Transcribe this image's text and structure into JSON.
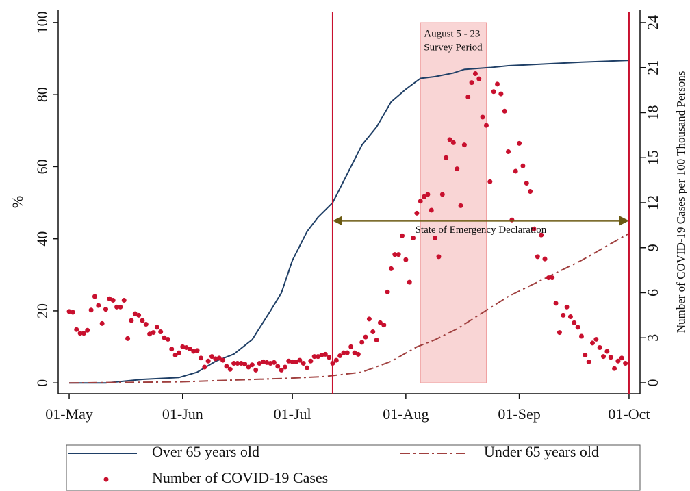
{
  "chart_data": {
    "type": "line",
    "ylabel": "%",
    "y2label": "Number of COVID-19 Cases per 100 Thousand Persons",
    "xlim": [
      -3,
      156
    ],
    "xticks": [
      {
        "value": 0,
        "label": "01-May"
      },
      {
        "value": 31,
        "label": "01-Jun"
      },
      {
        "value": 61,
        "label": "01-Jul"
      },
      {
        "value": 92,
        "label": "01-Aug"
      },
      {
        "value": 123,
        "label": "01-Sep"
      },
      {
        "value": 153,
        "label": "01-Oct"
      }
    ],
    "ylim": [
      -3,
      103.4
    ],
    "yticks": [
      0,
      20,
      40,
      60,
      80,
      100
    ],
    "y2lim": [
      -0.73,
      24.82
    ],
    "y2ticks": [
      0,
      3,
      6,
      9,
      12,
      15,
      18,
      21,
      24
    ],
    "series": [
      {
        "name": "Over 65 years old",
        "style": "solid",
        "color": "#1f3f66",
        "x": [
          0,
          10,
          15,
          20,
          30,
          35,
          40,
          45,
          50,
          55,
          58,
          61,
          65,
          68,
          72,
          76,
          80,
          84,
          88,
          92,
          96,
          100,
          105,
          108,
          115,
          120,
          130,
          140,
          153
        ],
        "values": [
          0,
          0,
          0.5,
          1,
          1.5,
          3,
          6,
          8,
          12,
          20,
          25,
          34,
          42,
          46,
          50,
          58,
          66,
          71,
          78,
          81.5,
          84.5,
          85,
          86,
          87,
          87.5,
          88,
          88.5,
          89,
          89.5
        ]
      },
      {
        "name": "Under 65 years  old",
        "style": "dashdot",
        "color": "#a0403f",
        "x": [
          0,
          30,
          60,
          70,
          80,
          88,
          95,
          100,
          106,
          113,
          120,
          130,
          140,
          153
        ],
        "values": [
          0,
          0.3,
          1.3,
          1.8,
          3,
          6,
          10,
          12,
          15,
          19.5,
          24,
          29,
          34,
          41.5
        ]
      },
      {
        "name": "Number of COVID-19 Cases",
        "style": "dots",
        "axis": "y2",
        "color": "#c8102e",
        "x": [
          0,
          1,
          2,
          3,
          4,
          5,
          6,
          7,
          8,
          9,
          10,
          11,
          12,
          13,
          14,
          15,
          16,
          17,
          18,
          19,
          20,
          21,
          22,
          23,
          24,
          25,
          26,
          27,
          28,
          29,
          30,
          31,
          32,
          33,
          34,
          35,
          36,
          37,
          38,
          39,
          40,
          41,
          42,
          43,
          44,
          45,
          46,
          47,
          48,
          49,
          50,
          51,
          52,
          53,
          54,
          55,
          56,
          57,
          58,
          59,
          60,
          61,
          62,
          63,
          64,
          65,
          66,
          67,
          68,
          69,
          70,
          71,
          72,
          73,
          74,
          75,
          76,
          77,
          78,
          79,
          80,
          81,
          82,
          83,
          84,
          85,
          86,
          87,
          88,
          89,
          90,
          91,
          92,
          93,
          94,
          95,
          96,
          97,
          98,
          99,
          100,
          101,
          102,
          103,
          104,
          105,
          106,
          107,
          108,
          109,
          110,
          111,
          112,
          113,
          114,
          115,
          116,
          117,
          118,
          119,
          120,
          121,
          122,
          123,
          124,
          125,
          126,
          127,
          128,
          129,
          130,
          131,
          132,
          133,
          134,
          135,
          136,
          137,
          138,
          139,
          140,
          141,
          142,
          143,
          144,
          145,
          146,
          147,
          148,
          149,
          150,
          151,
          152
        ],
        "values": [
          4.75,
          4.7,
          3.55,
          3.3,
          3.3,
          3.5,
          4.85,
          5.75,
          5.15,
          3.95,
          4.9,
          5.6,
          5.5,
          5.05,
          5.05,
          5.5,
          2.95,
          4.15,
          4.6,
          4.5,
          4.15,
          3.9,
          3.25,
          3.35,
          3.7,
          3.4,
          3.0,
          2.9,
          2.25,
          1.85,
          2.0,
          2.4,
          2.35,
          2.25,
          2.1,
          2.15,
          1.65,
          1.05,
          1.45,
          1.75,
          1.6,
          1.65,
          1.5,
          1.1,
          0.9,
          1.3,
          1.3,
          1.3,
          1.25,
          1.05,
          1.2,
          0.85,
          1.3,
          1.4,
          1.35,
          1.3,
          1.35,
          1.1,
          0.85,
          1.05,
          1.45,
          1.4,
          1.4,
          1.5,
          1.3,
          1.0,
          1.45,
          1.75,
          1.75,
          1.85,
          1.9,
          1.7,
          1.3,
          1.5,
          1.8,
          2.0,
          2.0,
          2.4,
          2.0,
          1.9,
          2.7,
          3.05,
          4.25,
          3.4,
          2.85,
          4.0,
          3.85,
          6.05,
          7.6,
          8.55,
          8.55,
          9.8,
          8.2,
          6.7,
          9.65,
          11.3,
          12.1,
          12.4,
          12.55,
          11.5,
          9.65,
          8.4,
          12.55,
          15.0,
          16.2,
          16.0,
          14.25,
          11.8,
          15.85,
          19.05,
          20.0,
          20.6,
          20.25,
          17.7,
          17.15,
          13.4,
          19.4,
          19.9,
          19.25,
          18.1,
          15.4,
          10.85,
          14.1,
          15.95,
          14.45,
          13.3,
          12.75,
          10.25,
          8.4,
          9.85,
          8.25,
          7.0,
          7.0,
          5.3,
          3.35,
          4.5,
          5.05,
          4.4,
          4.0,
          3.7,
          3.1,
          1.85,
          1.4,
          2.65,
          2.9,
          2.35,
          1.75,
          2.1,
          1.7,
          0.95,
          1.45,
          1.65,
          1.3
        ]
      }
    ],
    "vlines": {
      "color": "#c8102e",
      "x": [
        72,
        153
      ]
    },
    "span": {
      "x": [
        96,
        114
      ],
      "color": "#f9d5d5",
      "labels": [
        "August 5 - 23",
        "Survey Period"
      ]
    },
    "arrow": {
      "x": [
        72,
        153
      ],
      "y": 45,
      "color": "#6b5a12",
      "label": "State of Emergency Declaration"
    }
  }
}
